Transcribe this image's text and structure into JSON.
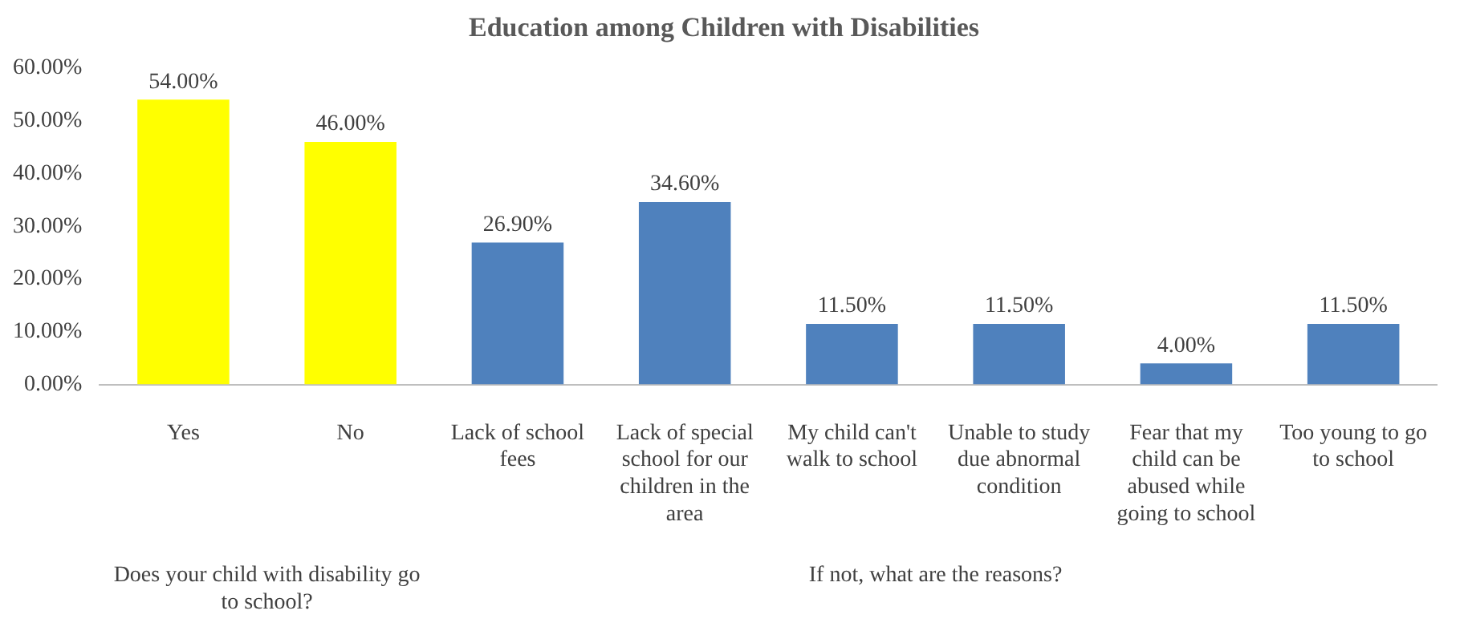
{
  "chart_data": {
    "type": "bar",
    "title": "Education among Children with Disabilities",
    "categories": [
      "Yes",
      "No",
      "Lack of school fees",
      "Lack of special school for our children in the area",
      "My child can't walk to school",
      "Unable to study due abnormal condition",
      "Fear that my child can be abused while going to school",
      "Too young to go to school"
    ],
    "values": [
      54,
      46,
      26.9,
      34.6,
      11.5,
      11.5,
      4,
      11.5
    ],
    "value_labels": [
      "54.00%",
      "46.00%",
      "26.90%",
      "34.60%",
      "11.50%",
      "11.50%",
      "4.00%",
      "11.50%"
    ],
    "colors": [
      "#ffff00",
      "#ffff00",
      "#4f81bd",
      "#4f81bd",
      "#4f81bd",
      "#4f81bd",
      "#4f81bd",
      "#4f81bd"
    ],
    "ylim": [
      0,
      60
    ],
    "yticks": [
      {
        "value": 0,
        "label": "0.00%"
      },
      {
        "value": 10,
        "label": "10.00%"
      },
      {
        "value": 20,
        "label": "20.00%"
      },
      {
        "value": 30,
        "label": "30.00%"
      },
      {
        "value": 40,
        "label": "40.00%"
      },
      {
        "value": 50,
        "label": "50.00%"
      },
      {
        "value": 60,
        "label": "60.00%"
      }
    ],
    "annotations": [
      "Does your child with disability go to school?",
      "If not, what are the reasons?"
    ],
    "grid": false,
    "legend": false
  }
}
